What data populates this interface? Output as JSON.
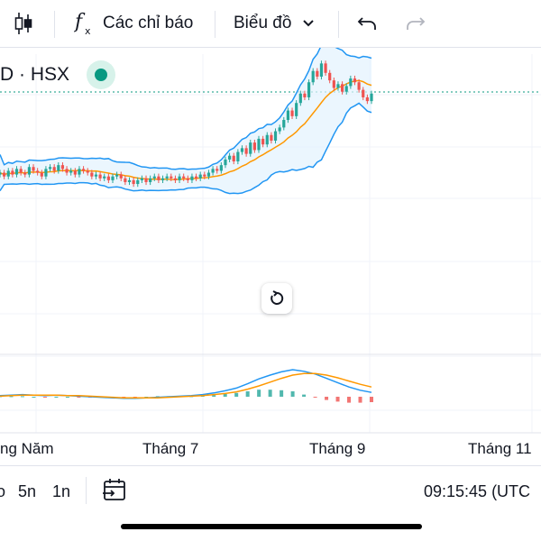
{
  "toolbar": {
    "candles_icon": "candlestick-icon",
    "indicators_icon": "function-icon",
    "indicators_label": "Các chỉ báo",
    "chart_type_label": "Biểu đồ",
    "undo_icon": "undo-icon",
    "redo_icon": "redo-icon"
  },
  "symbol": {
    "text": "D · HSX",
    "status_color": "#089981"
  },
  "xaxis": {
    "labels": [
      "ng Năm",
      "Tháng 7",
      "Tháng 9",
      "Tháng 11"
    ]
  },
  "bottom": {
    "ranges": [
      "o",
      "5n",
      "1n"
    ],
    "date_range_icon": "calendar-range-icon",
    "time": "09:15:45 (UTC"
  },
  "colors": {
    "up": "#26a69a",
    "down": "#ef5350",
    "bb_band": "#2196f3",
    "bb_fill": "#e3f2fd",
    "ma": "#ff9800",
    "macd": "#2196f3",
    "signal": "#ff9800",
    "hist_up": "#26a69a",
    "hist_down": "#ef5350",
    "price_line": "#089981"
  },
  "chart_data": {
    "type": "candlestick",
    "price_series_close": [
      88,
      86,
      89,
      87,
      90,
      88,
      87,
      91,
      89,
      88,
      86,
      90,
      91,
      89,
      92,
      90,
      88,
      89,
      87,
      90,
      89,
      88,
      86,
      87,
      85,
      86,
      84,
      86,
      87,
      85,
      83,
      84,
      82,
      84,
      85,
      83,
      85,
      86,
      84,
      85,
      86,
      85,
      84,
      86,
      85,
      84,
      86,
      85,
      87,
      86,
      88,
      90,
      89,
      92,
      95,
      97,
      94,
      99,
      101,
      98,
      104,
      100,
      106,
      103,
      108,
      105,
      110,
      112,
      116,
      121,
      118,
      125,
      130,
      128,
      136,
      142,
      139,
      146,
      141,
      137,
      133,
      135,
      131,
      134,
      138,
      136,
      132,
      128,
      126,
      130
    ],
    "macd": [
      0.2,
      0.3,
      0.4,
      0.3,
      0.2,
      0.3,
      0.2,
      0.1,
      0.0,
      -0.1,
      -0.2,
      -0.3,
      -0.3,
      -0.2,
      -0.1,
      0.0,
      0.1,
      0.2,
      0.4,
      0.7,
      1.1,
      1.6,
      2.4,
      3.3,
      4.0,
      4.6,
      5.0,
      4.7,
      4.2,
      3.4,
      2.6,
      1.8,
      1.2,
      0.8
    ],
    "signal": [
      0.1,
      0.2,
      0.3,
      0.3,
      0.3,
      0.3,
      0.2,
      0.2,
      0.1,
      0.0,
      -0.1,
      -0.2,
      -0.2,
      -0.2,
      -0.2,
      -0.1,
      0.0,
      0.1,
      0.2,
      0.4,
      0.6,
      0.9,
      1.4,
      2.0,
      2.7,
      3.4,
      4.0,
      4.3,
      4.3,
      4.0,
      3.5,
      2.9,
      2.3,
      1.8
    ]
  }
}
